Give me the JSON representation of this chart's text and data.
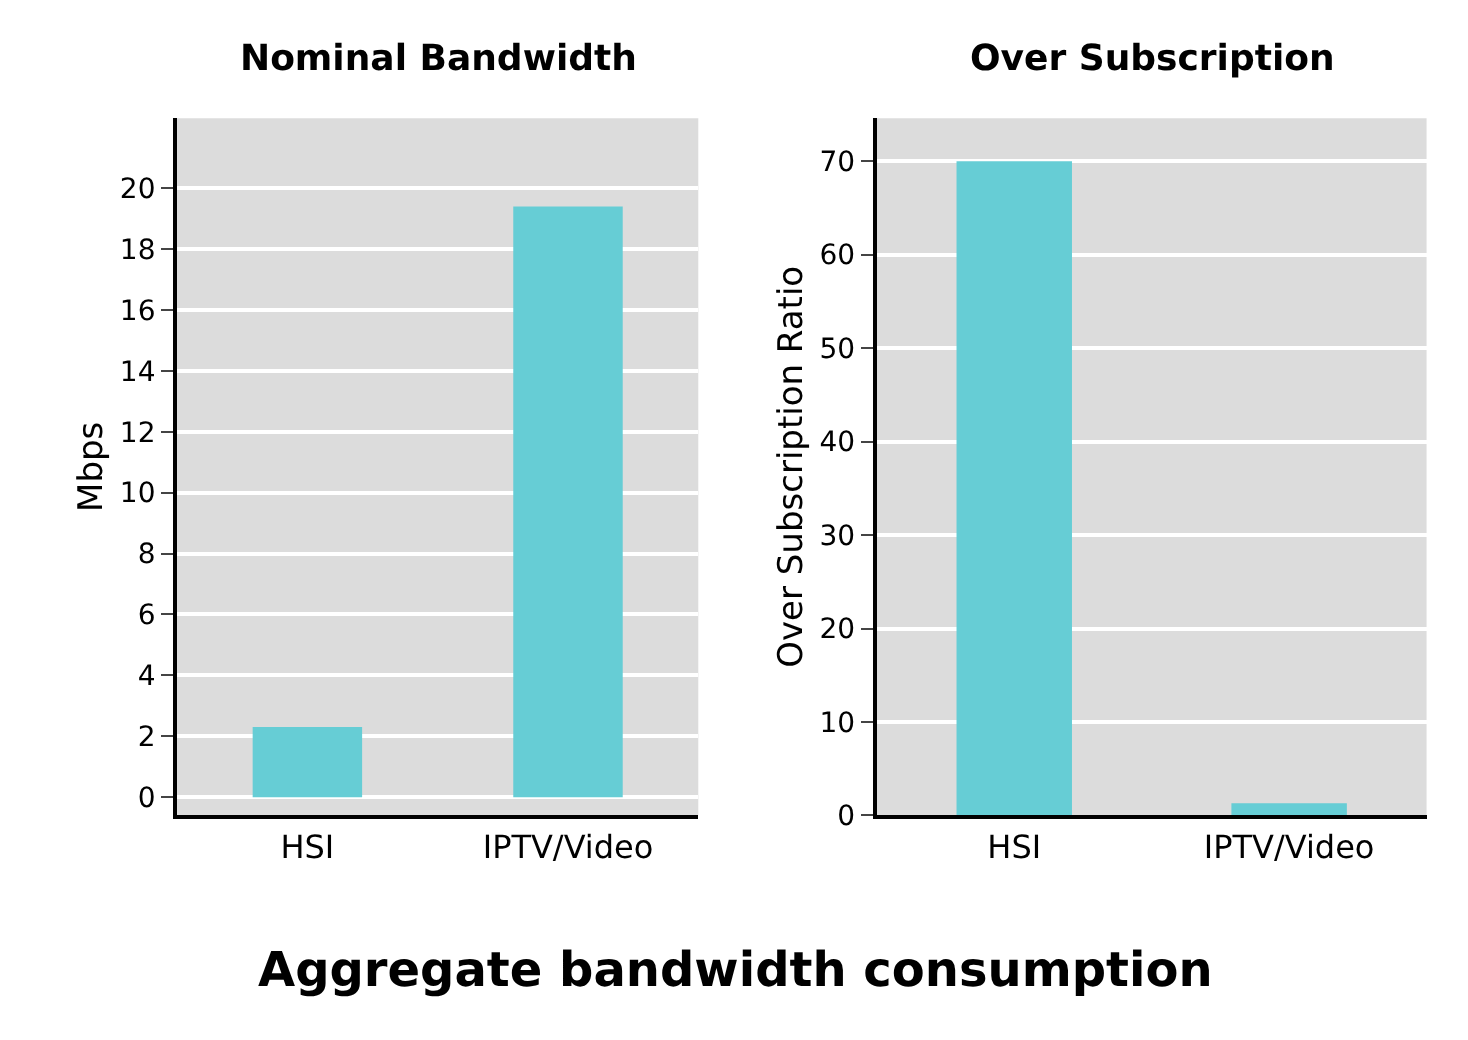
{
  "chart_data": [
    {
      "type": "bar",
      "title": "Nominal Bandwidth",
      "ylabel": "Mbps",
      "categories": [
        "HSI",
        "IPTV/Video"
      ],
      "values": [
        2.3,
        19.4
      ],
      "color": "#66cdd5",
      "ylim": [
        -0.6,
        22.3
      ],
      "yticks": [
        0,
        2,
        4,
        6,
        8,
        10,
        12,
        14,
        16,
        18,
        20
      ],
      "grid": "y",
      "annotations": [
        "Aggregate bandwidth consumption"
      ]
    },
    {
      "type": "bar",
      "title": "Over Subscription",
      "ylabel": "Over Subscription Ratio",
      "categories": [
        "HSI",
        "IPTV/Video"
      ],
      "values": [
        70,
        1.3
      ],
      "color": "#66cdd5",
      "ylim": [
        0,
        74.6
      ],
      "yticks": [
        0,
        10,
        20,
        30,
        40,
        50,
        60,
        70
      ],
      "grid": "y"
    }
  ]
}
